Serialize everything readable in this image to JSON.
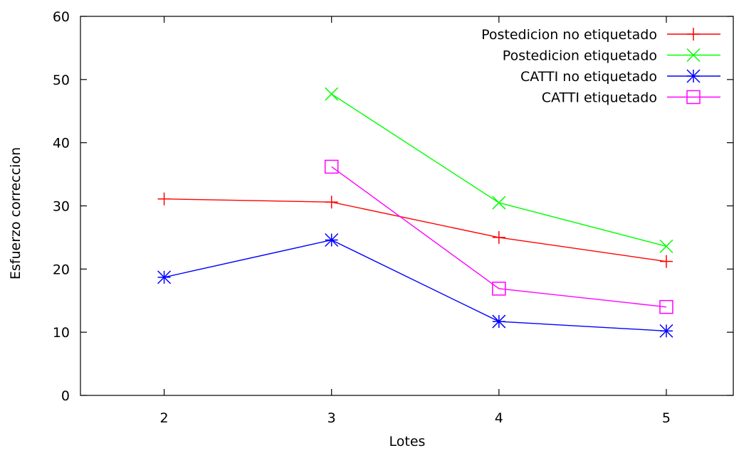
{
  "chart_data": {
    "type": "line",
    "title": "",
    "xlabel": "Lotes",
    "ylabel": "Esfuerzo correccion",
    "x_ticks": [
      2,
      3,
      4,
      5
    ],
    "y_ticks": [
      0,
      10,
      20,
      30,
      40,
      50,
      60
    ],
    "xlim": [
      1.5,
      5.4
    ],
    "ylim": [
      0,
      60
    ],
    "grid": false,
    "legend_position": "top-right",
    "series": [
      {
        "name": "Postedicion no etiquetado",
        "color": "#ff0000",
        "marker": "plus",
        "points": [
          {
            "x": 2,
            "y": 31.1
          },
          {
            "x": 3,
            "y": 30.6
          },
          {
            "x": 4,
            "y": 25.0
          },
          {
            "x": 5,
            "y": 21.2
          }
        ]
      },
      {
        "name": "Postedicion etiquetado",
        "color": "#00ff00",
        "marker": "cross",
        "points": [
          {
            "x": 3,
            "y": 47.7
          },
          {
            "x": 4,
            "y": 30.5
          },
          {
            "x": 5,
            "y": 23.6
          }
        ]
      },
      {
        "name": "CATTI no etiquetado",
        "color": "#0000ff",
        "marker": "star",
        "points": [
          {
            "x": 2,
            "y": 18.7
          },
          {
            "x": 3,
            "y": 24.6
          },
          {
            "x": 4,
            "y": 11.7
          },
          {
            "x": 5,
            "y": 10.2
          }
        ]
      },
      {
        "name": "CATTI etiquetado",
        "color": "#ff00ff",
        "marker": "square",
        "points": [
          {
            "x": 3,
            "y": 36.2
          },
          {
            "x": 4,
            "y": 16.9
          },
          {
            "x": 5,
            "y": 14.0
          }
        ]
      }
    ]
  }
}
